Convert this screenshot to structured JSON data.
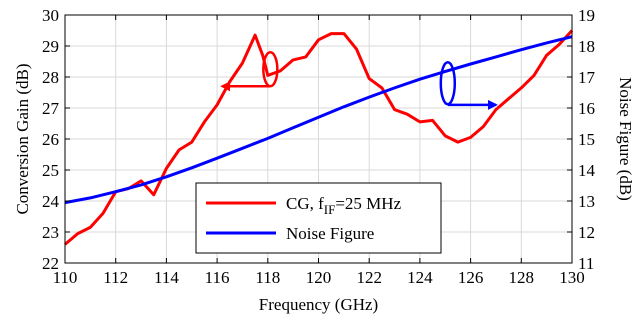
{
  "chart_data": {
    "type": "line",
    "title": "",
    "xlabel": "Frequency (GHz)",
    "ylabel_left": "Conversion Gain (dB)",
    "ylabel_right": "Noise Figure (dB)",
    "xlim": [
      110,
      130
    ],
    "ylim_left": [
      22,
      30
    ],
    "ylim_right": [
      11,
      19
    ],
    "x_ticks": [
      "110",
      "112",
      "114",
      "116",
      "118",
      "120",
      "122",
      "124",
      "126",
      "128",
      "130"
    ],
    "y_left_ticks": [
      "22",
      "23",
      "24",
      "25",
      "26",
      "27",
      "28",
      "29",
      "30"
    ],
    "y_right_ticks": [
      "11",
      "12",
      "13",
      "14",
      "15",
      "16",
      "17",
      "18",
      "19"
    ],
    "grid": true,
    "legend_position": "bottom-center",
    "series": [
      {
        "name_main": "CG, f",
        "name_sub": "IF",
        "name_tail": "=25 MHz",
        "axis": "left",
        "color": "#ff0000",
        "x": [
          110.0,
          110.5,
          111.0,
          111.5,
          112.0,
          112.5,
          113.0,
          113.5,
          114.0,
          114.5,
          115.0,
          115.5,
          116.0,
          116.5,
          117.0,
          117.5,
          117.8,
          118.0,
          118.5,
          119.0,
          119.5,
          120.0,
          120.5,
          121.0,
          121.5,
          122.0,
          122.5,
          123.0,
          123.5,
          124.0,
          124.5,
          125.0,
          125.5,
          126.0,
          126.5,
          127.0,
          127.5,
          128.0,
          128.5,
          129.0,
          129.5,
          130.0
        ],
        "y": [
          22.6,
          22.95,
          23.15,
          23.6,
          24.3,
          24.4,
          24.65,
          24.2,
          25.05,
          25.65,
          25.9,
          26.55,
          27.1,
          27.85,
          28.45,
          29.35,
          28.7,
          28.05,
          28.2,
          28.55,
          28.65,
          29.2,
          29.4,
          29.4,
          28.9,
          27.95,
          27.65,
          26.95,
          26.8,
          26.55,
          26.6,
          26.1,
          25.9,
          26.05,
          26.4,
          26.95,
          27.3,
          27.65,
          28.05,
          28.7,
          29.05,
          29.5
        ]
      },
      {
        "name": "Noise Figure",
        "axis": "right",
        "color": "#0000ff",
        "x": [
          110,
          111,
          112,
          113,
          114,
          115,
          116,
          117,
          118,
          119,
          120,
          121,
          122,
          123,
          124,
          125,
          126,
          127,
          128,
          129,
          130
        ],
        "y": [
          12.95,
          13.1,
          13.3,
          13.52,
          13.78,
          14.07,
          14.38,
          14.7,
          15.02,
          15.36,
          15.7,
          16.04,
          16.35,
          16.65,
          16.93,
          17.18,
          17.42,
          17.65,
          17.88,
          18.1,
          18.3
        ]
      }
    ],
    "annotations": [
      {
        "shape": "ellipse-with-arrow",
        "series": "CG",
        "points_to": "left"
      },
      {
        "shape": "ellipse-with-arrow",
        "series": "Noise Figure",
        "points_to": "right"
      }
    ]
  }
}
